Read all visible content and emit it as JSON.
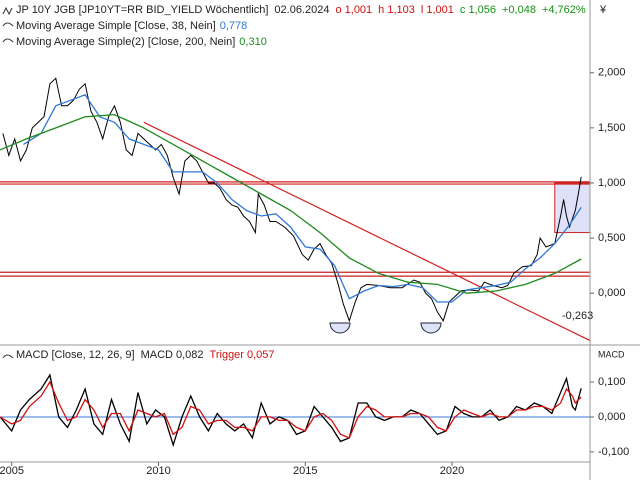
{
  "chart_data": [
    {
      "type": "line",
      "title": "JP 10Y JGB [JP10YT=RR BID_YIELD Wöchentlich]",
      "date": "02.06.2024",
      "ohlc": [
        {
          "text": "o 1,001",
          "color": "#d01010"
        },
        {
          "text": "h 1,103",
          "color": "#d01010"
        },
        {
          "text": "l 1,001",
          "color": "#d01010"
        },
        {
          "text": "c 1,056",
          "color": "#149014"
        },
        {
          "text": "+0,048",
          "color": "#149014"
        },
        {
          "text": "+4,762%",
          "color": "#149014"
        }
      ],
      "currency": "¥",
      "xlim": [
        2004.6,
        2024.7
      ],
      "ylim": [
        -0.47,
        2.66
      ],
      "yticks": [
        {
          "value": 2,
          "label": "2,000"
        },
        {
          "value": 1.5,
          "label": "1,500"
        },
        {
          "value": 1,
          "label": "1,000"
        },
        {
          "value": 0.5,
          "label": "0,500"
        },
        {
          "value": 0,
          "label": "0,000"
        }
      ],
      "series": [
        {
          "color": "#000000",
          "x": [
            2004.7,
            2004.9,
            2005.1,
            2005.3,
            2005.5,
            2005.7,
            2005.9,
            2006.1,
            2006.3,
            2006.5,
            2006.7,
            2006.9,
            2007.1,
            2007.3,
            2007.5,
            2007.7,
            2007.9,
            2008.1,
            2008.3,
            2008.5,
            2008.7,
            2008.9,
            2009.1,
            2009.3,
            2009.5,
            2009.7,
            2009.9,
            2010.1,
            2010.3,
            2010.5,
            2010.7,
            2010.9,
            2011.1,
            2011.3,
            2011.5,
            2011.7,
            2011.9,
            2012.1,
            2012.3,
            2012.5,
            2012.7,
            2012.9,
            2013.1,
            2013.3,
            2013.4,
            2013.6,
            2013.8,
            2014.0,
            2014.3,
            2014.6,
            2014.9,
            2015.1,
            2015.3,
            2015.5,
            2015.7,
            2015.9,
            2016.1,
            2016.3,
            2016.5,
            2016.7,
            2016.9,
            2017.1,
            2017.5,
            2017.9,
            2018.3,
            2018.7,
            2018.9,
            2019.1,
            2019.3,
            2019.5,
            2019.7,
            2019.9,
            2020.1,
            2020.3,
            2020.6,
            2020.9,
            2021.1,
            2021.4,
            2021.7,
            2021.9,
            2022.1,
            2022.4,
            2022.7,
            2022.9,
            2023.0,
            2023.2,
            2023.5,
            2023.7,
            2023.8,
            2023.9,
            2024.0,
            2024.2,
            2024.3,
            2024.4
          ],
          "values": [
            1.45,
            1.25,
            1.4,
            1.2,
            1.3,
            1.5,
            1.55,
            1.6,
            1.9,
            1.95,
            1.7,
            1.7,
            1.75,
            1.85,
            1.9,
            1.65,
            1.55,
            1.4,
            1.6,
            1.7,
            1.55,
            1.3,
            1.25,
            1.45,
            1.4,
            1.35,
            1.3,
            1.35,
            1.25,
            1.05,
            0.9,
            1.2,
            1.25,
            1.2,
            1.1,
            1.0,
            1.0,
            0.95,
            0.85,
            0.8,
            0.78,
            0.7,
            0.65,
            0.55,
            0.9,
            0.8,
            0.65,
            0.65,
            0.6,
            0.52,
            0.35,
            0.3,
            0.4,
            0.45,
            0.35,
            0.27,
            0.1,
            -0.1,
            -0.25,
            -0.08,
            0.05,
            0.08,
            0.07,
            0.05,
            0.05,
            0.12,
            0.1,
            0.0,
            -0.05,
            -0.17,
            -0.25,
            -0.08,
            -0.03,
            0.02,
            0.03,
            0.02,
            0.1,
            0.07,
            0.05,
            0.07,
            0.18,
            0.24,
            0.25,
            0.35,
            0.5,
            0.42,
            0.45,
            0.7,
            0.85,
            0.7,
            0.6,
            0.75,
            0.9,
            1.056
          ]
        },
        {
          "name": "Moving Average Simple [Close, 38, Nein]",
          "color": "#2f78d8",
          "last": {
            "value": 0.778,
            "label": "0,778"
          },
          "x": [
            2005.4,
            2006.0,
            2006.5,
            2007.0,
            2007.5,
            2008.0,
            2008.5,
            2009.0,
            2009.5,
            2010.0,
            2010.5,
            2011.0,
            2011.5,
            2012.0,
            2012.5,
            2013.0,
            2013.5,
            2014.0,
            2014.5,
            2015.0,
            2015.5,
            2016.0,
            2016.5,
            2017.0,
            2017.5,
            2018.0,
            2018.5,
            2019.0,
            2019.5,
            2020.0,
            2020.5,
            2021.0,
            2021.5,
            2022.0,
            2022.5,
            2023.0,
            2023.5,
            2024.0,
            2024.4
          ],
          "values": [
            1.35,
            1.45,
            1.7,
            1.75,
            1.8,
            1.6,
            1.55,
            1.4,
            1.35,
            1.3,
            1.1,
            1.1,
            1.1,
            1.0,
            0.85,
            0.75,
            0.7,
            0.72,
            0.6,
            0.42,
            0.4,
            0.25,
            -0.05,
            0.02,
            0.07,
            0.06,
            0.08,
            0.05,
            -0.08,
            -0.08,
            0.03,
            0.05,
            0.07,
            0.1,
            0.22,
            0.32,
            0.45,
            0.62,
            0.778
          ]
        },
        {
          "name": "Moving Average Simple(2) [Close, 200, Nein]",
          "color": "#1e8a1e",
          "last": {
            "value": 0.31,
            "label": "0,310"
          },
          "x": [
            2004.6,
            2005.5,
            2006.5,
            2007.5,
            2008.5,
            2009.5,
            2010.5,
            2011.5,
            2012.5,
            2013.5,
            2014.5,
            2015.5,
            2016.5,
            2017.5,
            2018.5,
            2019.5,
            2020.5,
            2021.5,
            2022.5,
            2023.5,
            2024.4
          ],
          "values": [
            1.3,
            1.4,
            1.5,
            1.6,
            1.62,
            1.5,
            1.35,
            1.2,
            1.05,
            0.9,
            0.75,
            0.55,
            0.32,
            0.18,
            0.1,
            0.08,
            0.0,
            0.02,
            0.08,
            0.18,
            0.31
          ]
        }
      ],
      "hlines": [
        {
          "value": 1.01,
          "color": "#d02020"
        },
        {
          "value": 0.99,
          "color": "#d02020"
        },
        {
          "value": 0.19,
          "color": "#d02020"
        },
        {
          "value": 0.155,
          "color": "#d02020"
        }
      ],
      "trendline": {
        "x": [
          2009.5,
          2024.7
        ],
        "y": [
          1.55,
          -0.43
        ],
        "color": "#d02020"
      },
      "highlight": {
        "x": [
          2023.5,
          2024.7
        ],
        "y": [
          0.55,
          1.0
        ]
      },
      "annotation": "-0,263"
    },
    {
      "type": "line",
      "title": "MACD [Close, 12, 26, 9]",
      "axis_label": "MACD",
      "xlim": [
        2004.6,
        2024.7
      ],
      "ylim": [
        -0.129,
        0.206
      ],
      "yticks": [
        {
          "value": 0.1,
          "label": "0,100"
        },
        {
          "value": 0,
          "label": "0,000"
        },
        {
          "value": -0.1,
          "label": "-0,100"
        }
      ],
      "xticks": [
        2005,
        2010,
        2015,
        2020
      ],
      "zero_color": "#3a78d8",
      "series": [
        {
          "name": "MACD",
          "color": "#000000",
          "last": {
            "value": 0.082,
            "label": "0,082"
          },
          "x": [
            2004.6,
            2005.0,
            2005.3,
            2005.6,
            2006.0,
            2006.3,
            2006.6,
            2006.9,
            2007.2,
            2007.5,
            2007.8,
            2008.1,
            2008.4,
            2008.7,
            2009.0,
            2009.3,
            2009.6,
            2009.9,
            2010.2,
            2010.5,
            2010.8,
            2011.1,
            2011.4,
            2011.7,
            2012.0,
            2012.3,
            2012.6,
            2012.9,
            2013.2,
            2013.5,
            2013.8,
            2014.1,
            2014.4,
            2014.7,
            2015.0,
            2015.3,
            2015.6,
            2015.9,
            2016.2,
            2016.5,
            2016.8,
            2017.1,
            2017.4,
            2017.7,
            2018.0,
            2018.3,
            2018.6,
            2018.9,
            2019.2,
            2019.5,
            2019.8,
            2020.1,
            2020.4,
            2020.7,
            2021.0,
            2021.3,
            2021.6,
            2021.9,
            2022.2,
            2022.5,
            2022.8,
            2023.1,
            2023.4,
            2023.7,
            2023.9,
            2024.1,
            2024.2,
            2024.4
          ],
          "values": [
            0.0,
            -0.04,
            0.02,
            0.05,
            0.08,
            0.12,
            0.0,
            -0.03,
            0.02,
            0.08,
            -0.02,
            -0.05,
            0.05,
            -0.02,
            -0.07,
            0.07,
            -0.02,
            0.02,
            0.0,
            -0.08,
            0.0,
            0.06,
            0.0,
            -0.04,
            0.01,
            -0.02,
            -0.04,
            -0.02,
            -0.06,
            0.04,
            -0.02,
            0.0,
            -0.01,
            -0.05,
            -0.04,
            0.03,
            0.0,
            -0.03,
            -0.07,
            -0.06,
            0.04,
            0.04,
            0.0,
            -0.01,
            0.0,
            0.0,
            0.02,
            0.01,
            -0.02,
            -0.05,
            -0.04,
            0.03,
            0.01,
            0.0,
            0.0,
            0.02,
            -0.01,
            0.0,
            0.03,
            0.02,
            0.04,
            0.03,
            0.01,
            0.07,
            0.11,
            0.03,
            0.02,
            0.082
          ]
        },
        {
          "name": "Trigger",
          "color": "#d01010",
          "last": {
            "value": 0.057,
            "label": "0,057"
          },
          "x": [
            2004.6,
            2005.0,
            2005.3,
            2005.6,
            2006.0,
            2006.3,
            2006.6,
            2006.9,
            2007.2,
            2007.5,
            2007.8,
            2008.1,
            2008.4,
            2008.7,
            2009.0,
            2009.3,
            2009.6,
            2009.9,
            2010.2,
            2010.5,
            2010.8,
            2011.1,
            2011.4,
            2011.7,
            2012.0,
            2012.3,
            2012.6,
            2012.9,
            2013.2,
            2013.5,
            2013.8,
            2014.1,
            2014.4,
            2014.7,
            2015.0,
            2015.3,
            2015.6,
            2015.9,
            2016.2,
            2016.5,
            2016.8,
            2017.1,
            2017.4,
            2017.7,
            2018.0,
            2018.3,
            2018.6,
            2018.9,
            2019.2,
            2019.5,
            2019.8,
            2020.1,
            2020.4,
            2020.7,
            2021.0,
            2021.3,
            2021.6,
            2021.9,
            2022.2,
            2022.5,
            2022.8,
            2023.1,
            2023.4,
            2023.7,
            2023.9,
            2024.1,
            2024.2,
            2024.4
          ],
          "values": [
            0.0,
            -0.02,
            -0.01,
            0.03,
            0.06,
            0.1,
            0.04,
            -0.01,
            0.0,
            0.05,
            0.02,
            -0.03,
            0.01,
            0.01,
            -0.04,
            0.02,
            0.01,
            0.0,
            0.01,
            -0.05,
            -0.03,
            0.03,
            0.02,
            -0.02,
            -0.01,
            -0.01,
            -0.03,
            -0.03,
            -0.04,
            0.0,
            0.0,
            -0.01,
            -0.01,
            -0.03,
            -0.04,
            0.0,
            0.01,
            -0.01,
            -0.05,
            -0.06,
            0.0,
            0.03,
            0.02,
            0.0,
            0.0,
            0.0,
            0.01,
            0.01,
            0.0,
            -0.03,
            -0.04,
            0.0,
            0.02,
            0.01,
            0.0,
            0.01,
            0.0,
            0.0,
            0.02,
            0.02,
            0.03,
            0.03,
            0.02,
            0.04,
            0.08,
            0.06,
            0.04,
            0.057
          ]
        }
      ]
    }
  ]
}
